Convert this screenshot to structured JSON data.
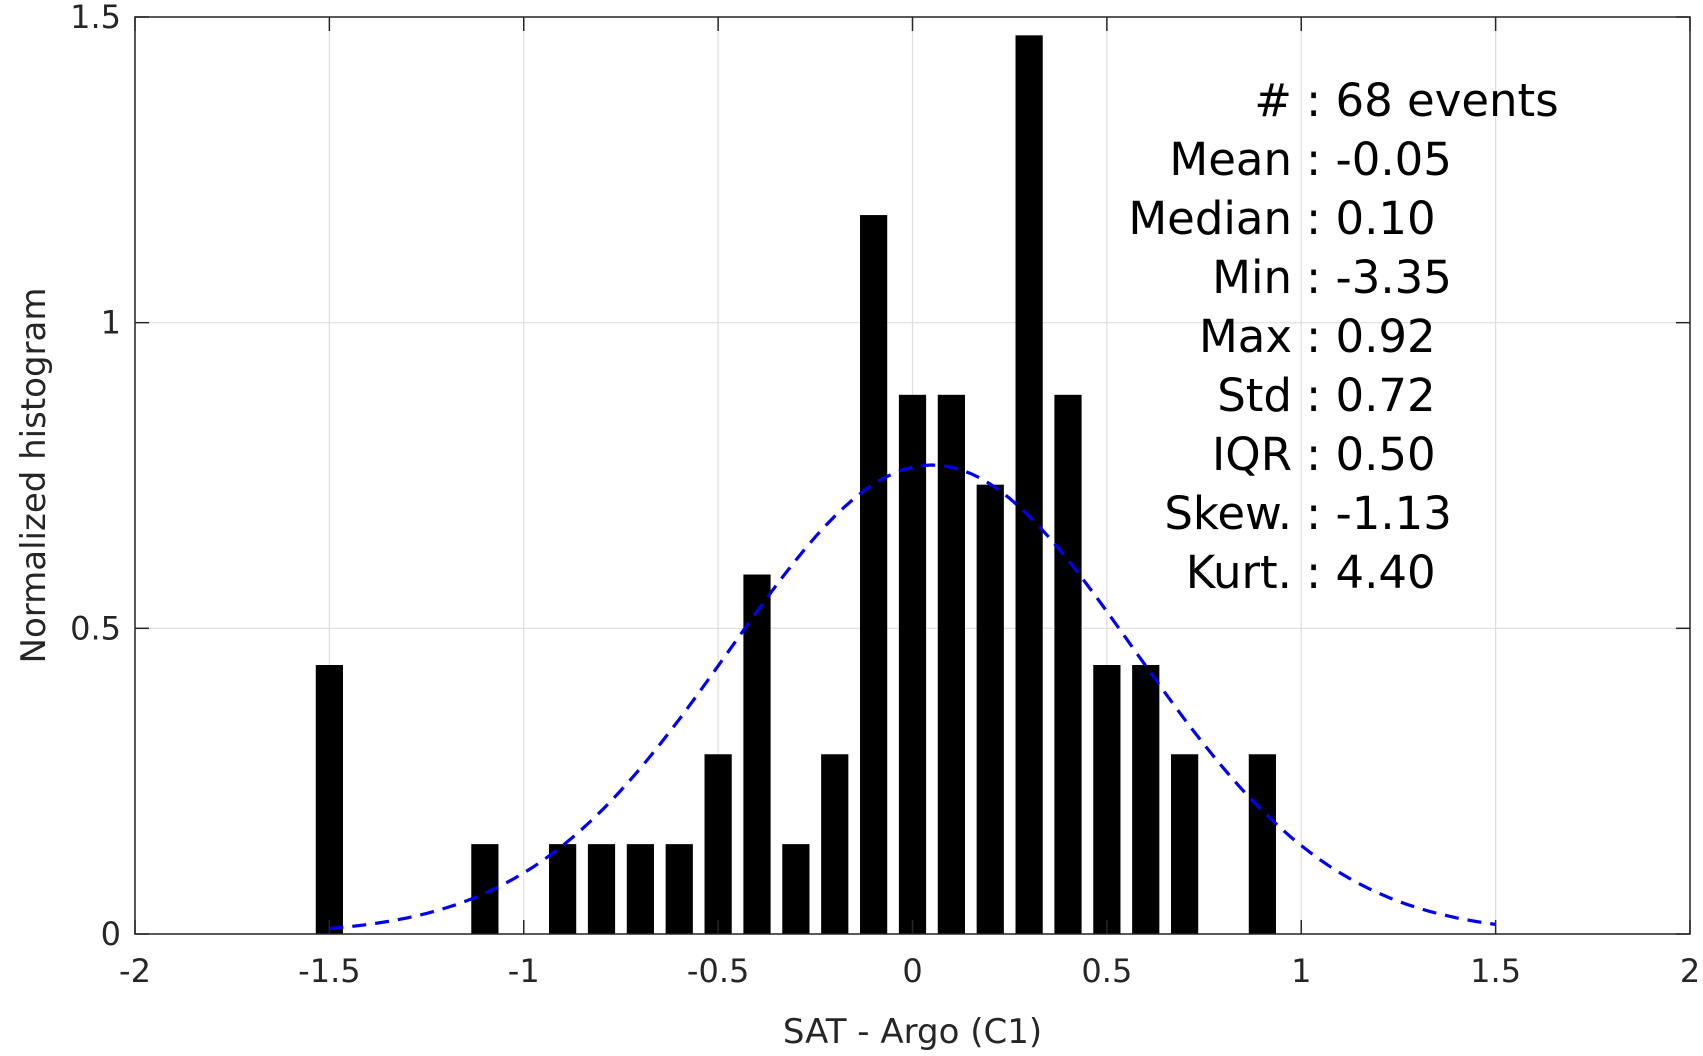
{
  "chart_data": {
    "type": "bar",
    "xlabel": "SAT - Argo (C1)",
    "ylabel": "Normalized histogram",
    "xlim": [
      -2,
      2
    ],
    "ylim": [
      0,
      1.5
    ],
    "grid": true,
    "xticks": [
      -2,
      -1.5,
      -1,
      -0.5,
      0,
      0.5,
      1,
      1.5,
      2
    ],
    "xtick_labels": [
      "-2",
      "-1.5",
      "-1",
      "-0.5",
      "0",
      "0.5",
      "1",
      "1.5",
      "2"
    ],
    "yticks": [
      0,
      0.5,
      1,
      1.5
    ],
    "ytick_labels": [
      "0",
      "0.5",
      "1",
      "1.5"
    ],
    "bar_color": "#000000",
    "bar_width": 0.07,
    "bins": [
      {
        "x": -1.5,
        "y": 0.44
      },
      {
        "x": -1.1,
        "y": 0.147
      },
      {
        "x": -0.9,
        "y": 0.147
      },
      {
        "x": -0.8,
        "y": 0.147
      },
      {
        "x": -0.7,
        "y": 0.147
      },
      {
        "x": -0.6,
        "y": 0.147
      },
      {
        "x": -0.5,
        "y": 0.294
      },
      {
        "x": -0.4,
        "y": 0.588
      },
      {
        "x": -0.2,
        "y": 0.294
      },
      {
        "x": -0.3,
        "y": 0.147
      },
      {
        "x": -0.1,
        "y": 1.176
      },
      {
        "x": 0.0,
        "y": 0.882
      },
      {
        "x": 0.1,
        "y": 0.882
      },
      {
        "x": 0.2,
        "y": 0.735
      },
      {
        "x": 0.3,
        "y": 1.47
      },
      {
        "x": 0.4,
        "y": 0.882
      },
      {
        "x": 0.5,
        "y": 0.44
      },
      {
        "x": 0.6,
        "y": 0.44
      },
      {
        "x": 0.7,
        "y": 0.294
      },
      {
        "x": 0.9,
        "y": 0.294
      }
    ],
    "fit_curve": {
      "style": "dashed",
      "color": "#0000ee",
      "mean": 0.05,
      "std": 0.52,
      "x_range": [
        -1.5,
        1.5
      ]
    },
    "annotations": [
      "#  : 68 events",
      "Mean : -0.05",
      "Median : 0.10",
      "Min : -3.35",
      "Max : 0.92",
      "Std : 0.72",
      "IQR : 0.50",
      "Skew. : -1.13",
      "Kurt. : 4.40"
    ]
  }
}
